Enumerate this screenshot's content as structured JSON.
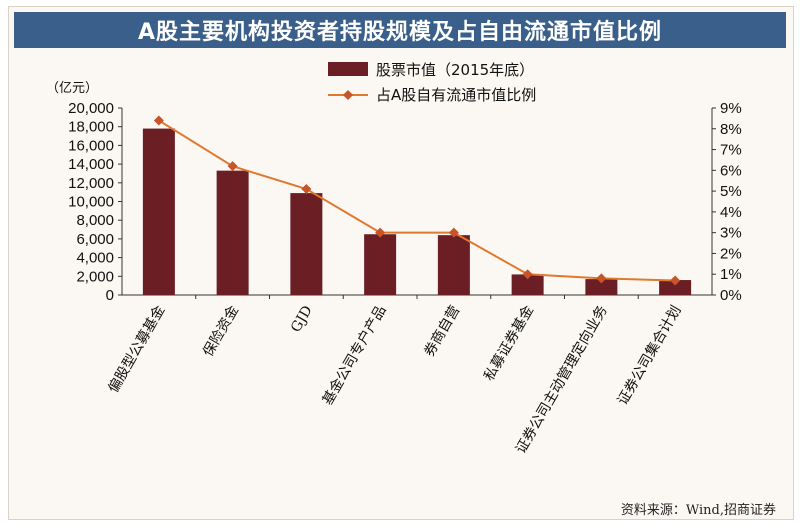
{
  "title": "A股主要机构投资者持股规模及占自由流通市值比例",
  "source": "资料来源：Wind,招商证券",
  "colors": {
    "bar": "#6b1f24",
    "line": "#e07830",
    "marker": "#c8542a",
    "title_bg": "#3a5f8a"
  },
  "chart_data": {
    "type": "bar",
    "categories": [
      "偏股型公募基金",
      "保险资金",
      "GJD",
      "基金公司专户产品",
      "券商自营",
      "私募证券基金",
      "证券公司主动管理定向业务",
      "证券公司集合计划"
    ],
    "left_axis": {
      "unit_label": "（亿元）",
      "ylim": [
        0,
        20000
      ],
      "ticks": [
        "0",
        "2,000",
        "4,000",
        "6,000",
        "8,000",
        "10,000",
        "12,000",
        "14,000",
        "16,000",
        "18,000",
        "20,000"
      ]
    },
    "right_axis": {
      "ylim": [
        0,
        9
      ],
      "ticks": [
        "0%",
        "1%",
        "2%",
        "3%",
        "4%",
        "5%",
        "6%",
        "7%",
        "8%",
        "9%"
      ]
    },
    "series": [
      {
        "name": "股票市值（2015年底）",
        "type": "bar",
        "axis": "left",
        "values": [
          17800,
          13300,
          10900,
          6500,
          6400,
          2200,
          1700,
          1600
        ]
      },
      {
        "name": "占A股自有流通市值比例",
        "type": "line",
        "axis": "right",
        "values": [
          8.4,
          6.2,
          5.1,
          3.0,
          3.0,
          1.0,
          0.8,
          0.7
        ]
      }
    ],
    "legend_position": "top-center",
    "grid": false
  }
}
